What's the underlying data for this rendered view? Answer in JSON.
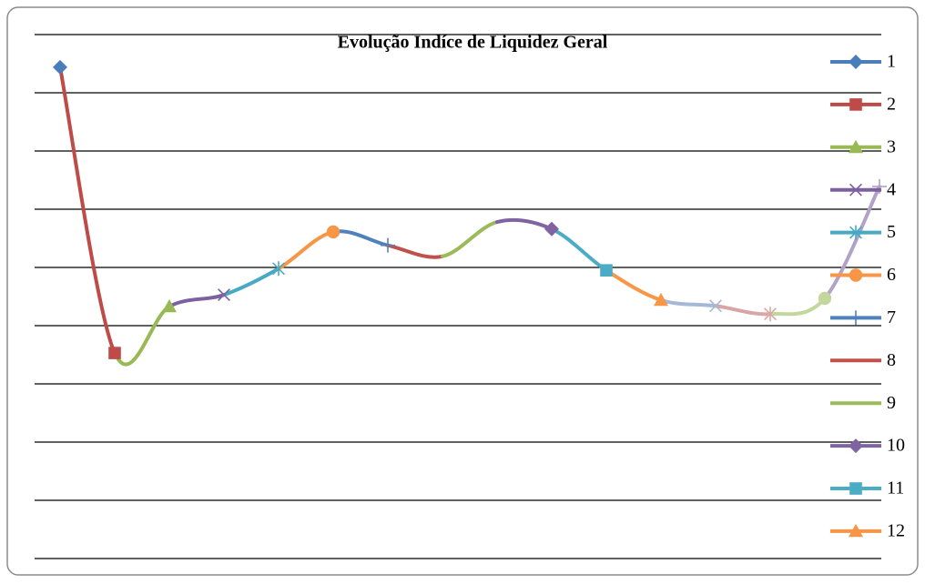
{
  "chart_data": {
    "type": "line",
    "title": "Evolução Indíce de Liquidez Geral",
    "ylim": [
      0,
      9
    ],
    "yticks": [
      0,
      1,
      2,
      3,
      4,
      5,
      6,
      7,
      8,
      9
    ],
    "grid": true,
    "series": [
      {
        "name": "1",
        "color": "#4a7ebb",
        "marker": "diamond",
        "values": [
          8.44
        ]
      },
      {
        "name": "2",
        "color": "#be4b48",
        "marker": "square",
        "values": [
          3.53
        ]
      },
      {
        "name": "3",
        "color": "#98b954",
        "marker": "triangle",
        "values": [
          4.33
        ]
      },
      {
        "name": "4",
        "color": "#7d60a0",
        "marker": "x",
        "values": [
          4.53
        ]
      },
      {
        "name": "5",
        "color": "#46aac5",
        "marker": "star",
        "values": [
          4.98
        ]
      },
      {
        "name": "6",
        "color": "#f79646",
        "marker": "circle",
        "values": [
          5.61
        ]
      },
      {
        "name": "7",
        "color": "#4f81bd",
        "marker": "plus",
        "values": [
          5.38
        ]
      },
      {
        "name": "8",
        "color": "#c0504d",
        "marker": "none",
        "values": [
          5.19
        ]
      },
      {
        "name": "9",
        "color": "#9bbb59",
        "marker": "none",
        "values": [
          5.78
        ]
      },
      {
        "name": "10",
        "color": "#8064a2",
        "marker": "diamond",
        "values": [
          5.66
        ]
      },
      {
        "name": "11",
        "color": "#4bacc6",
        "marker": "square",
        "values": [
          4.95
        ]
      },
      {
        "name": "12",
        "color": "#f79646",
        "marker": "triangle",
        "values": [
          4.44
        ]
      },
      {
        "color": "#a6b8d8",
        "marker": "x",
        "values": [
          4.34
        ]
      },
      {
        "color": "#d9a6a5",
        "marker": "star",
        "values": [
          4.2
        ]
      },
      {
        "color": "#c3d69b",
        "marker": "circle",
        "values": [
          4.47
        ]
      },
      {
        "color": "#b3a2c7",
        "marker": "plus",
        "values": [
          6.39
        ]
      }
    ]
  }
}
